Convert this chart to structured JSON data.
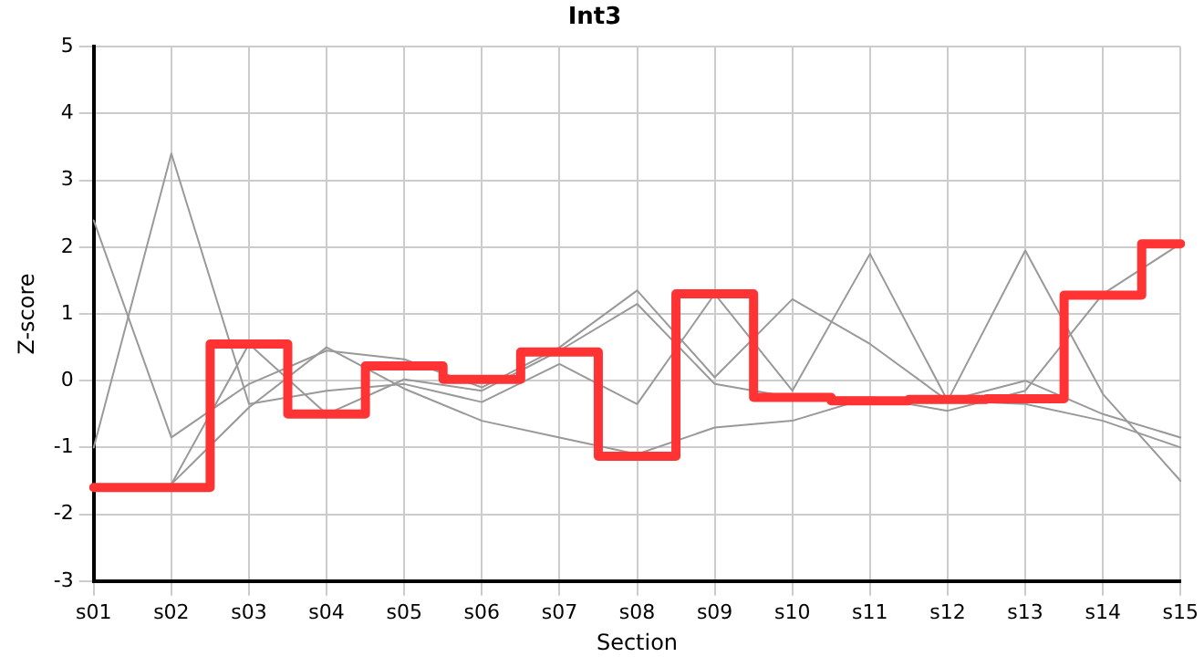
{
  "chart_data": {
    "type": "line",
    "title": "Int3",
    "xlabel": "Section",
    "ylabel": "Z-score",
    "categories": [
      "s01",
      "s02",
      "s03",
      "s04",
      "s05",
      "s06",
      "s07",
      "s08",
      "s09",
      "s10",
      "s11",
      "s12",
      "s13",
      "s14",
      "s15"
    ],
    "series": [
      {
        "color": "#999999",
        "values": [
          2.4,
          -0.85,
          -0.05,
          0.45,
          0.32,
          -0.1,
          0.5,
          1.35,
          0.05,
          1.22,
          0.55,
          -0.3,
          0.0,
          -0.5,
          -0.85
        ]
      },
      {
        "color": "#999999",
        "values": [
          -1.0,
          3.4,
          -0.35,
          -0.15,
          -0.05,
          -0.32,
          0.25,
          -0.35,
          1.3,
          -0.15,
          1.9,
          -0.3,
          1.95,
          -0.2,
          -1.5
        ]
      },
      {
        "color": "#999999",
        "values": [
          null,
          -1.55,
          0.55,
          -0.5,
          0.02,
          -0.15,
          0.45,
          1.15,
          -0.05,
          -0.25,
          -0.25,
          -0.45,
          -0.15,
          1.3,
          2.05
        ]
      },
      {
        "color": "#999999",
        "values": [
          null,
          -1.55,
          -0.4,
          0.5,
          -0.12,
          -0.6,
          -0.85,
          -1.1,
          -0.7,
          -0.6,
          -0.25,
          -0.3,
          -0.35,
          -0.6,
          -1.0
        ]
      },
      {
        "type": "step",
        "color": "#ff3333",
        "values": [
          -1.6,
          -1.6,
          0.55,
          -0.5,
          0.22,
          0.02,
          0.43,
          -1.13,
          1.3,
          -0.25,
          -0.3,
          -0.28,
          -0.27,
          1.28,
          2.05
        ]
      }
    ],
    "ylim": [
      -3,
      5
    ],
    "yticks": [
      -3,
      -2,
      -1,
      0,
      1,
      2,
      3,
      4,
      5
    ],
    "grid": true,
    "legend": false,
    "marker": "none",
    "line_style": "solid"
  }
}
